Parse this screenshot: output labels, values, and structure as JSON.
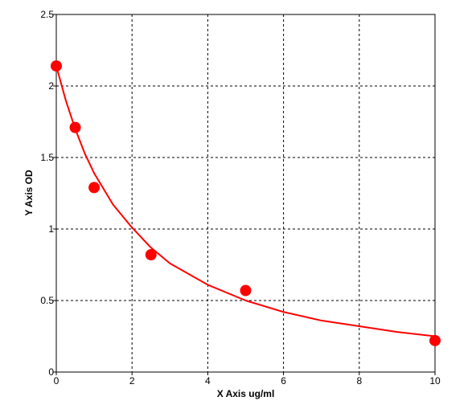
{
  "chart_data": {
    "type": "scatter",
    "title": "",
    "xlabel": "X Axis ug/ml",
    "ylabel": "Y Axis OD",
    "xlim": [
      0,
      10
    ],
    "ylim": [
      0,
      2.5
    ],
    "x_ticks": [
      0,
      2,
      4,
      6,
      8,
      10
    ],
    "y_ticks": [
      0,
      0.5,
      1,
      1.5,
      2,
      2.5
    ],
    "x_tick_labels": [
      "0",
      "2",
      "4",
      "6",
      "8",
      "10"
    ],
    "y_tick_labels": [
      "0",
      "0.5",
      "1",
      "1.5",
      "2",
      "2.5"
    ],
    "grid": true,
    "grid_style": "dashed",
    "series": [
      {
        "points": [
          {
            "x": 0,
            "y": 2.14
          },
          {
            "x": 0.5,
            "y": 1.71
          },
          {
            "x": 1,
            "y": 1.29
          },
          {
            "x": 2.5,
            "y": 0.82
          },
          {
            "x": 5,
            "y": 0.57
          },
          {
            "x": 10,
            "y": 0.22
          }
        ],
        "color": "#ff0000"
      }
    ],
    "fit_curve": {
      "color": "#ff0000",
      "points": [
        {
          "x": 0,
          "y": 2.14
        },
        {
          "x": 0.25,
          "y": 1.9
        },
        {
          "x": 0.5,
          "y": 1.7
        },
        {
          "x": 0.75,
          "y": 1.53
        },
        {
          "x": 1,
          "y": 1.39
        },
        {
          "x": 1.5,
          "y": 1.17
        },
        {
          "x": 2,
          "y": 1.01
        },
        {
          "x": 2.5,
          "y": 0.87
        },
        {
          "x": 3,
          "y": 0.76
        },
        {
          "x": 4,
          "y": 0.61
        },
        {
          "x": 5,
          "y": 0.5
        },
        {
          "x": 6,
          "y": 0.42
        },
        {
          "x": 7,
          "y": 0.36
        },
        {
          "x": 8,
          "y": 0.32
        },
        {
          "x": 9,
          "y": 0.28
        },
        {
          "x": 10,
          "y": 0.25
        }
      ]
    }
  }
}
